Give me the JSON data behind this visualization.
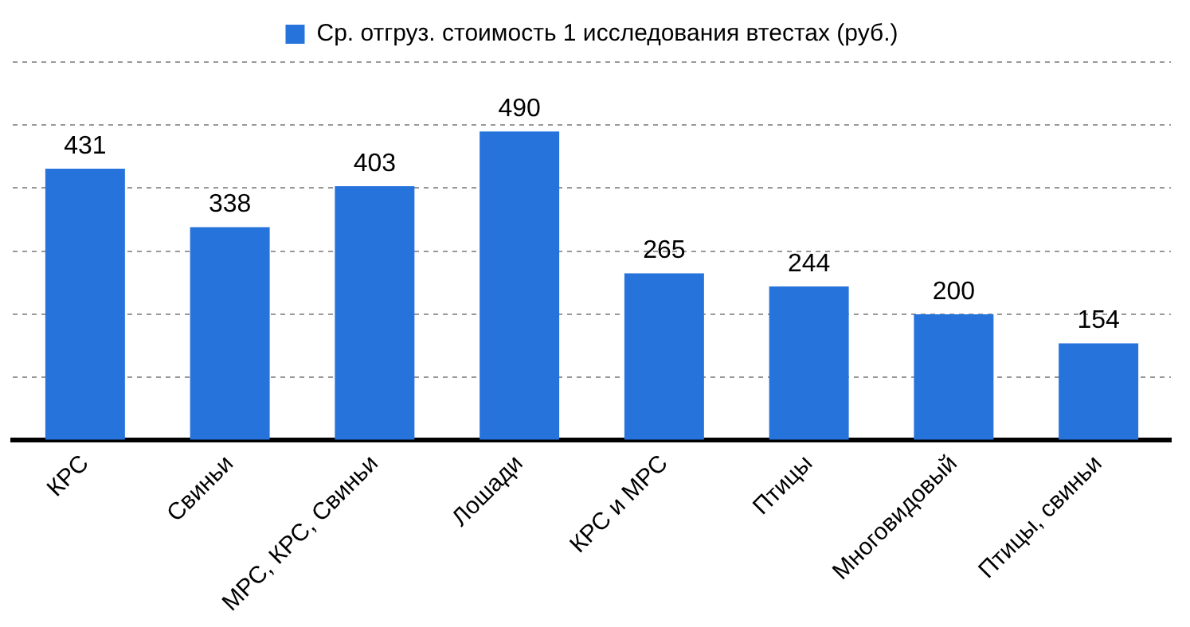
{
  "chart_data": {
    "type": "bar",
    "categories": [
      "КРС",
      "Свиньи",
      "МРС, КРС, Свиньи",
      "Лошади",
      "КРС и МРС",
      "Птицы",
      "Многовидовый",
      "Птицы, свиньи"
    ],
    "series": [
      {
        "name": "Ср. отгруз. стоимость 1 исследования втестах (руб.)",
        "color": "#2673dc",
        "values": [
          431,
          338,
          403,
          490,
          265,
          244,
          200,
          154
        ]
      }
    ],
    "ylim": [
      0,
      600
    ],
    "yticks": [
      {
        "value": 0,
        "label": null
      },
      {
        "value": 100,
        "label": null
      },
      {
        "value": 200,
        "label": null
      },
      {
        "value": 300,
        "label": null
      },
      {
        "value": 400,
        "label": null
      },
      {
        "value": 500,
        "label": null
      },
      {
        "value": 600,
        "label": null
      }
    ],
    "tick_labels": "x",
    "grid": "y",
    "line_style": "dashed",
    "legend": "top",
    "data_labels": true
  }
}
